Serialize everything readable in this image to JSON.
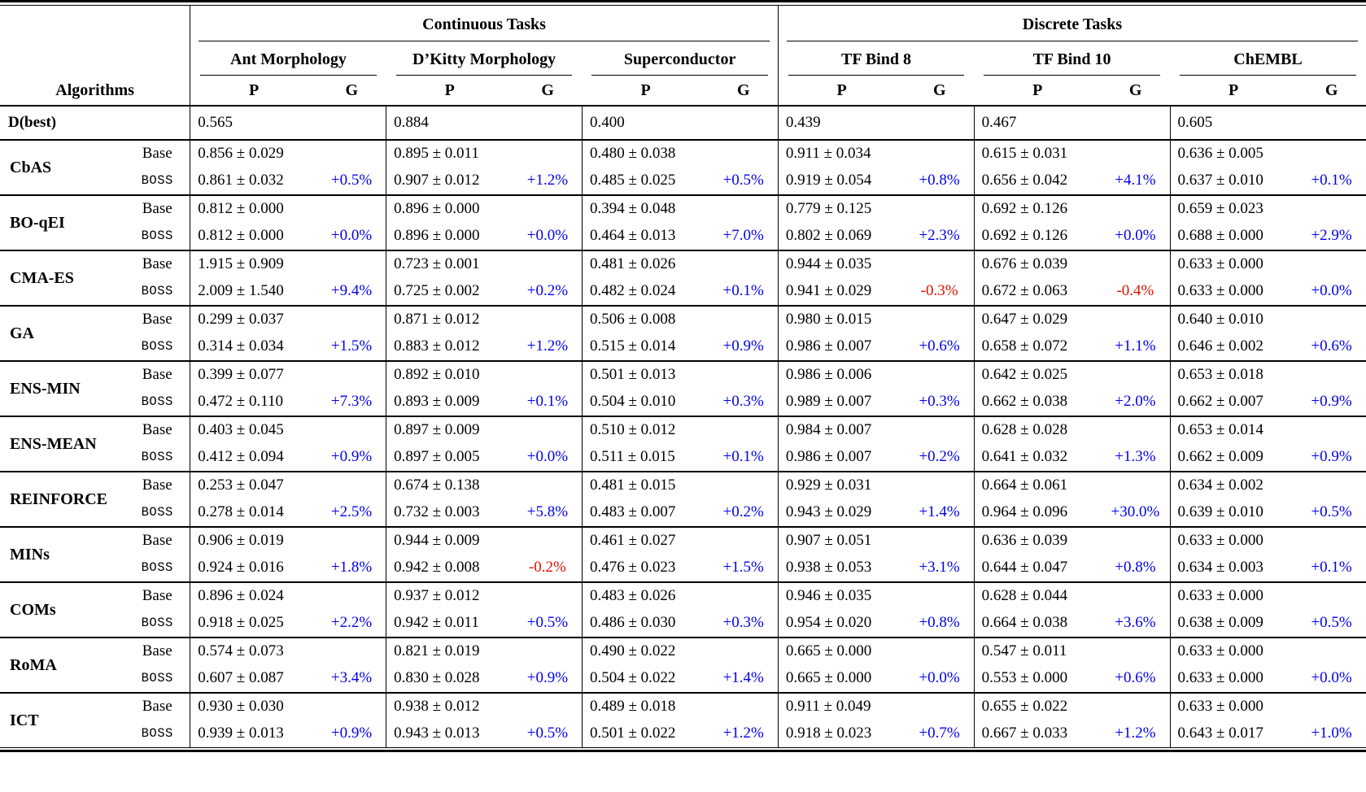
{
  "colors": {
    "gain": "#0000EE",
    "loss": "#DD1100"
  },
  "header": {
    "algorithms_label": "Algorithms",
    "p_label": "P",
    "g_label": "G",
    "groups": [
      {
        "label": "Continuous Tasks",
        "tasks": [
          "Ant Morphology",
          "D’Kitty Morphology",
          "Superconductor"
        ]
      },
      {
        "label": "Discrete Tasks",
        "tasks": [
          "TF Bind 8",
          "TF Bind 10",
          "ChEMBL"
        ]
      }
    ]
  },
  "dbest_row": {
    "label": "D(best)",
    "values": [
      "0.565",
      "0.884",
      "0.400",
      "0.439",
      "0.467",
      "0.605"
    ]
  },
  "row_labels": {
    "base": "Base",
    "boss": "BOSS"
  },
  "algorithms": [
    {
      "name": "CbAS",
      "base": [
        "0.856 ± 0.029",
        "0.895 ± 0.011",
        "0.480 ± 0.038",
        "0.911 ± 0.034",
        "0.615 ± 0.031",
        "0.636 ± 0.005"
      ],
      "boss": [
        "0.861 ± 0.032",
        "0.907 ± 0.012",
        "0.485 ± 0.025",
        "0.919 ± 0.054",
        "0.656 ± 0.042",
        "0.637 ± 0.010"
      ],
      "gains": [
        "+0.5%",
        "+1.2%",
        "+0.5%",
        "+0.8%",
        "+4.1%",
        "+0.1%"
      ]
    },
    {
      "name": "BO-qEI",
      "base": [
        "0.812 ± 0.000",
        "0.896 ± 0.000",
        "0.394 ± 0.048",
        "0.779 ± 0.125",
        "0.692 ± 0.126",
        "0.659 ± 0.023"
      ],
      "boss": [
        "0.812 ± 0.000",
        "0.896 ± 0.000",
        "0.464 ± 0.013",
        "0.802 ± 0.069",
        "0.692 ± 0.126",
        "0.688 ± 0.000"
      ],
      "gains": [
        "+0.0%",
        "+0.0%",
        "+7.0%",
        "+2.3%",
        "+0.0%",
        "+2.9%"
      ]
    },
    {
      "name": "CMA-ES",
      "base": [
        "1.915 ± 0.909",
        "0.723 ± 0.001",
        "0.481 ± 0.026",
        "0.944 ± 0.035",
        "0.676 ± 0.039",
        "0.633 ± 0.000"
      ],
      "boss": [
        "2.009 ± 1.540",
        "0.725 ± 0.002",
        "0.482 ± 0.024",
        "0.941 ± 0.029",
        "0.672 ± 0.063",
        "0.633 ± 0.000"
      ],
      "gains": [
        "+9.4%",
        "+0.2%",
        "+0.1%",
        "-0.3%",
        "-0.4%",
        "+0.0%"
      ]
    },
    {
      "name": "GA",
      "base": [
        "0.299 ± 0.037",
        "0.871 ± 0.012",
        "0.506 ± 0.008",
        "0.980 ± 0.015",
        "0.647 ± 0.029",
        "0.640 ± 0.010"
      ],
      "boss": [
        "0.314 ± 0.034",
        "0.883 ± 0.012",
        "0.515 ± 0.014",
        "0.986 ± 0.007",
        "0.658 ± 0.072",
        "0.646 ± 0.002"
      ],
      "gains": [
        "+1.5%",
        "+1.2%",
        "+0.9%",
        "+0.6%",
        "+1.1%",
        "+0.6%"
      ]
    },
    {
      "name": "ENS-MIN",
      "base": [
        "0.399 ± 0.077",
        "0.892 ± 0.010",
        "0.501 ± 0.013",
        "0.986 ± 0.006",
        "0.642 ± 0.025",
        "0.653 ± 0.018"
      ],
      "boss": [
        "0.472 ± 0.110",
        "0.893 ± 0.009",
        "0.504 ± 0.010",
        "0.989 ± 0.007",
        "0.662 ± 0.038",
        "0.662 ± 0.007"
      ],
      "gains": [
        "+7.3%",
        "+0.1%",
        "+0.3%",
        "+0.3%",
        "+2.0%",
        "+0.9%"
      ]
    },
    {
      "name": "ENS-MEAN",
      "base": [
        "0.403 ± 0.045",
        "0.897 ± 0.009",
        "0.510 ± 0.012",
        "0.984 ± 0.007",
        "0.628 ± 0.028",
        "0.653 ± 0.014"
      ],
      "boss": [
        "0.412 ± 0.094",
        "0.897 ± 0.005",
        "0.511 ± 0.015",
        "0.986 ± 0.007",
        "0.641 ± 0.032",
        "0.662 ± 0.009"
      ],
      "gains": [
        "+0.9%",
        "+0.0%",
        "+0.1%",
        "+0.2%",
        "+1.3%",
        "+0.9%"
      ]
    },
    {
      "name": "REINFORCE",
      "base": [
        "0.253 ± 0.047",
        "0.674 ± 0.138",
        "0.481 ± 0.015",
        "0.929 ± 0.031",
        "0.664 ± 0.061",
        "0.634 ± 0.002"
      ],
      "boss": [
        "0.278 ± 0.014",
        "0.732 ± 0.003",
        "0.483 ± 0.007",
        "0.943 ± 0.029",
        "0.964 ± 0.096",
        "0.639 ± 0.010"
      ],
      "gains": [
        "+2.5%",
        "+5.8%",
        "+0.2%",
        "+1.4%",
        "+30.0%",
        "+0.5%"
      ]
    },
    {
      "name": "MINs",
      "base": [
        "0.906 ± 0.019",
        "0.944 ± 0.009",
        "0.461 ± 0.027",
        "0.907 ± 0.051",
        "0.636 ± 0.039",
        "0.633 ± 0.000"
      ],
      "boss": [
        "0.924 ± 0.016",
        "0.942 ± 0.008",
        "0.476 ± 0.023",
        "0.938 ± 0.053",
        "0.644 ± 0.047",
        "0.634 ± 0.003"
      ],
      "gains": [
        "+1.8%",
        "-0.2%",
        "+1.5%",
        "+3.1%",
        "+0.8%",
        "+0.1%"
      ]
    },
    {
      "name": "COMs",
      "base": [
        "0.896 ± 0.024",
        "0.937 ± 0.012",
        "0.483 ± 0.026",
        "0.946 ± 0.035",
        "0.628 ± 0.044",
        "0.633 ± 0.000"
      ],
      "boss": [
        "0.918 ± 0.025",
        "0.942 ± 0.011",
        "0.486 ± 0.030",
        "0.954 ± 0.020",
        "0.664 ± 0.038",
        "0.638 ± 0.009"
      ],
      "gains": [
        "+2.2%",
        "+0.5%",
        "+0.3%",
        "+0.8%",
        "+3.6%",
        "+0.5%"
      ]
    },
    {
      "name": "RoMA",
      "base": [
        "0.574 ± 0.073",
        "0.821 ± 0.019",
        "0.490 ± 0.022",
        "0.665 ± 0.000",
        "0.547 ± 0.011",
        "0.633 ± 0.000"
      ],
      "boss": [
        "0.607 ± 0.087",
        "0.830 ± 0.028",
        "0.504 ± 0.022",
        "0.665 ± 0.000",
        "0.553 ± 0.000",
        "0.633 ± 0.000"
      ],
      "gains": [
        "+3.4%",
        "+0.9%",
        "+1.4%",
        "+0.0%",
        "+0.6%",
        "+0.0%"
      ]
    },
    {
      "name": "ICT",
      "base": [
        "0.930 ± 0.030",
        "0.938 ± 0.012",
        "0.489 ± 0.018",
        "0.911 ± 0.049",
        "0.655 ± 0.022",
        "0.633 ± 0.000"
      ],
      "boss": [
        "0.939 ± 0.013",
        "0.943 ± 0.013",
        "0.501 ± 0.022",
        "0.918 ± 0.023",
        "0.667 ± 0.033",
        "0.643 ± 0.017"
      ],
      "gains": [
        "+0.9%",
        "+0.5%",
        "+1.2%",
        "+0.7%",
        "+1.2%",
        "+1.0%"
      ]
    }
  ]
}
